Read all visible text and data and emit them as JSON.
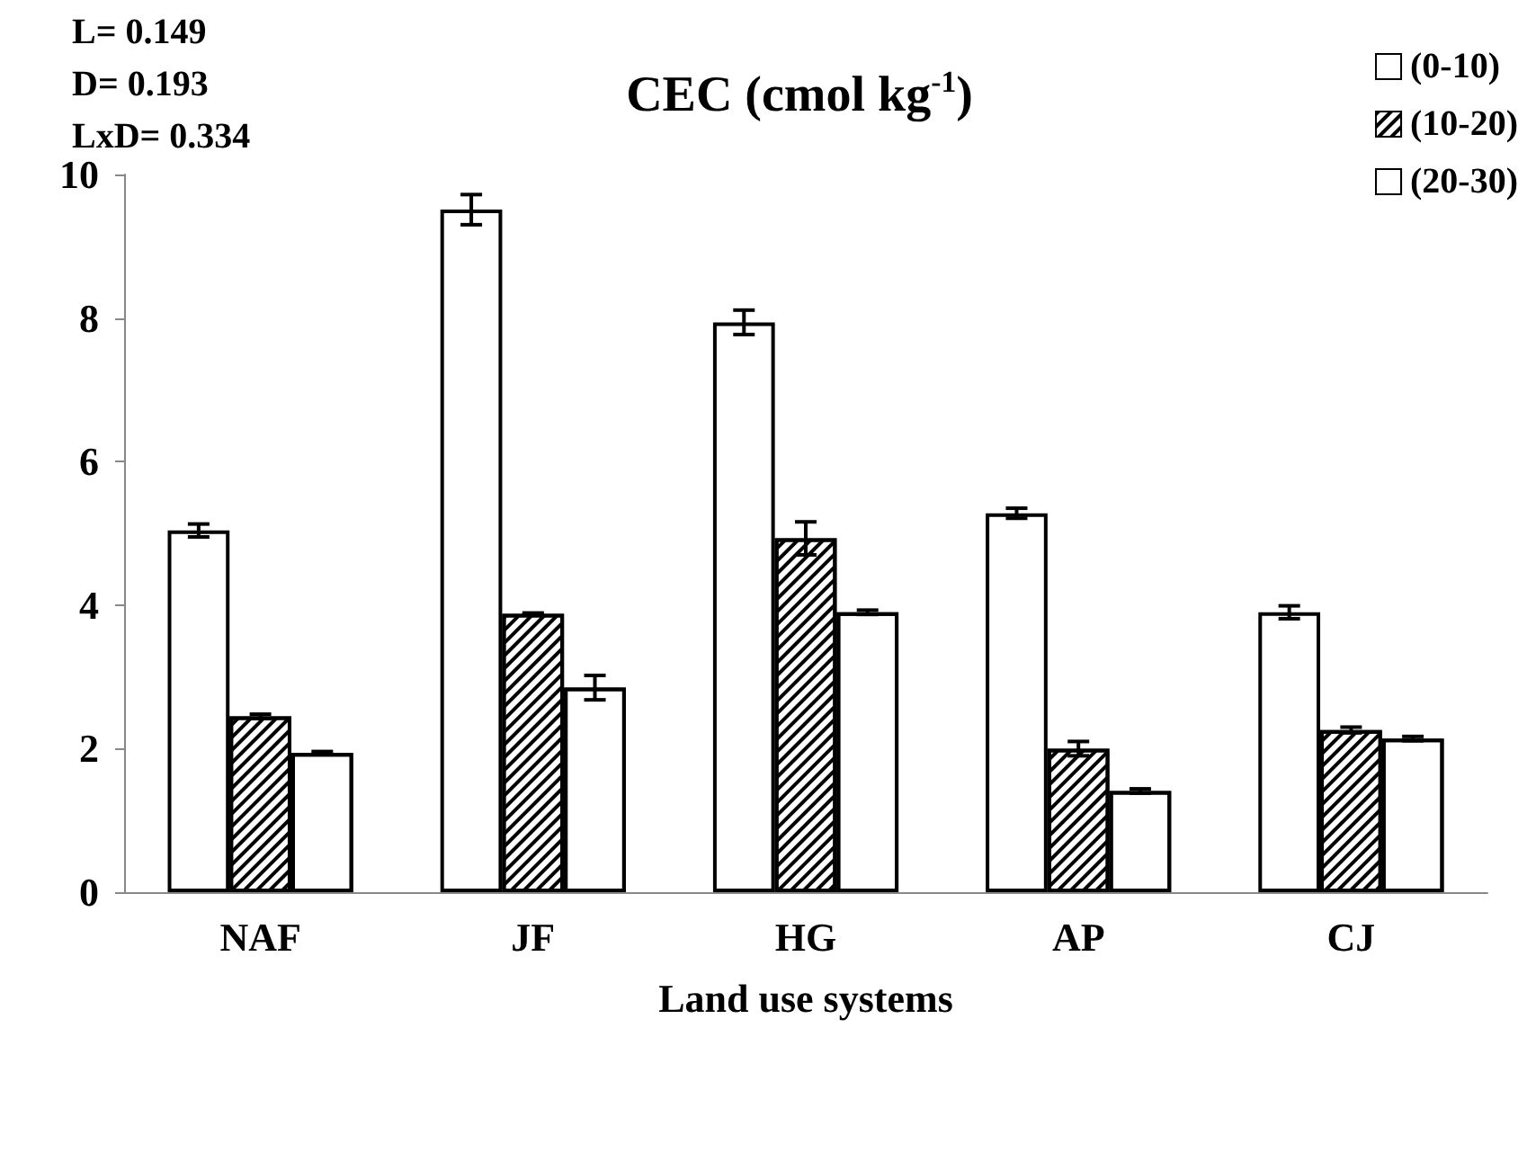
{
  "chart_data": {
    "type": "bar",
    "title": "CEC (cmol kg$^{-1}$)",
    "xlabel": "Land use systems",
    "annotations": [
      "L= 0.149",
      "D= 0.193",
      "LxD= 0.334"
    ],
    "categories": [
      "NAF",
      "JF",
      "HG",
      "AP",
      "CJ"
    ],
    "series": [
      {
        "name": "(0-10)",
        "color": "#ffffff",
        "values": [
          5.04,
          9.51,
          7.94,
          5.28,
          3.9
        ],
        "errors": [
          0.09,
          0.21,
          0.17,
          0.07,
          0.09
        ]
      },
      {
        "name": "(10-20)",
        "color": "#ffffff",
        "values": [
          2.45,
          3.88,
          4.93,
          2.0,
          2.26
        ],
        "errors": [
          0.03,
          0.01,
          0.23,
          0.1,
          0.04
        ]
      },
      {
        "name": "(20-30)",
        "color": "#ffffff",
        "values": [
          1.94,
          2.85,
          3.9,
          1.41,
          2.14
        ],
        "errors": [
          0.02,
          0.17,
          0.03,
          0.03,
          0.03
        ]
      }
    ],
    "ylim": [
      0,
      10
    ],
    "yticks": [
      0,
      2,
      4,
      6,
      8,
      10
    ],
    "grid": false,
    "legend": "top right"
  }
}
